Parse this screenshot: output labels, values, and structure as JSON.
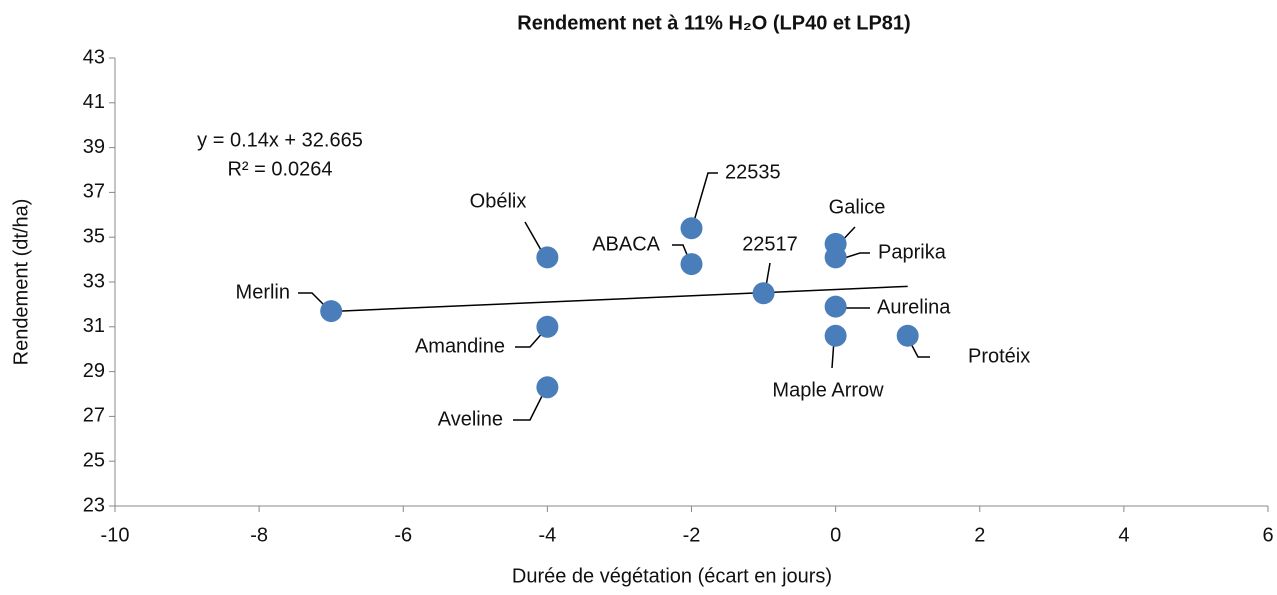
{
  "chart_data": {
    "type": "scatter",
    "title": "Rendement net à 11% H₂O (LP40 et LP81)",
    "x_label": "Durée de végétation (écart en jours)",
    "y_label": "Rendement (dt/ha)",
    "labels": [
      "Merlin",
      "Obélix",
      "Amandine",
      "Aveline",
      "22535",
      "ABACA",
      "22517",
      "Galice",
      "Paprika",
      "Aurelina",
      "Maple Arrow",
      "Protéix"
    ],
    "x": [
      -7,
      -4,
      -4,
      -4,
      -2,
      -2,
      -1,
      0,
      0,
      0,
      0,
      1
    ],
    "values": [
      31.7,
      34.1,
      31.0,
      28.3,
      35.4,
      33.8,
      32.5,
      34.7,
      34.1,
      31.9,
      30.6,
      30.6
    ],
    "color": "#4a7ebb",
    "trendline": {
      "slope": 0.14,
      "intercept": 32.665,
      "equation": "y = 0.14x + 32.665",
      "r2": "R² = 0.0264"
    },
    "xlim": [
      -10,
      6
    ],
    "xticks": [
      -10,
      -8,
      -6,
      -4,
      -2,
      0,
      2,
      4,
      6
    ],
    "ylim": [
      23,
      43
    ],
    "yticks": [
      23,
      25,
      27,
      29,
      31,
      33,
      35,
      37,
      39,
      41,
      43
    ]
  }
}
